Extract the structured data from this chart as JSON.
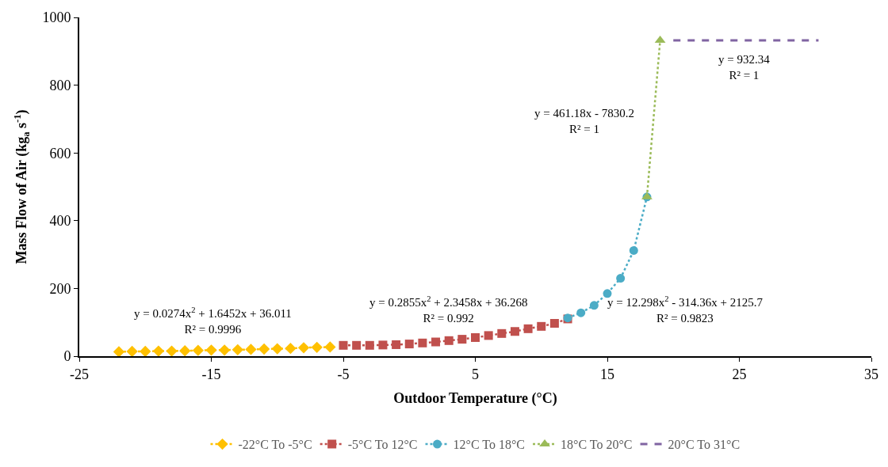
{
  "chart_data": {
    "type": "line",
    "xlabel": "Outdoor Temperature (°C)",
    "ylabel": "Mass Flow of Air (kg$_{a}$ s$^{-1}$)",
    "xlim": [
      -25,
      35
    ],
    "xticks": [
      -25,
      -15,
      -5,
      5,
      15,
      25,
      35
    ],
    "ylim": [
      0,
      1000
    ],
    "yticks": [
      0,
      200,
      400,
      600,
      800,
      1000
    ],
    "legend": "bottom",
    "series": [
      {
        "name": "-22°C To -5°C",
        "color": "#ffc000",
        "marker": "diamond",
        "line_style": "dotted",
        "x": [
          -22,
          -21,
          -20,
          -19,
          -18,
          -17,
          -16,
          -15,
          -14,
          -13,
          -12,
          -11,
          -10,
          -9,
          -8,
          -7,
          -6
        ],
        "values": [
          13,
          14,
          14,
          15,
          15,
          16,
          17,
          18,
          18,
          19,
          20,
          21,
          22,
          23,
          25,
          26,
          27
        ]
      },
      {
        "name": "-5°C To 12°C",
        "color": "#c0504d",
        "marker": "square",
        "line_style": "dotted",
        "x": [
          -5,
          -4,
          -3,
          -2,
          -1,
          0,
          1,
          2,
          3,
          4,
          5,
          6,
          7,
          8,
          9,
          10,
          11,
          12
        ],
        "values": [
          32,
          32,
          32,
          33,
          34,
          36,
          39,
          42,
          46,
          50,
          55,
          61,
          67,
          73,
          81,
          88,
          97,
          110
        ]
      },
      {
        "name": "12°C To 18°C",
        "color": "#4bacc6",
        "marker": "circle",
        "line_style": "dotted",
        "x": [
          12,
          13,
          14,
          15,
          16,
          17,
          18
        ],
        "values": [
          113,
          128,
          150,
          185,
          230,
          312,
          470
        ]
      },
      {
        "name": "18°C To 20°C",
        "color": "#9bbb59",
        "marker": "triangle",
        "line_style": "dotted",
        "x": [
          18,
          19
        ],
        "values": [
          470,
          932
        ]
      },
      {
        "name": "20°C To 31°C",
        "color": "#8064a2",
        "marker": "none",
        "line_style": "dashed",
        "x": [
          20,
          31
        ],
        "values": [
          932,
          932
        ]
      }
    ],
    "annotations": [
      "y = 0.0274x$^{2}$ + 1.6452x + 36.011\nR² = 0.9996",
      "y = 0.2855x$^{2}$ + 2.3458x + 36.268\nR² = 0.992",
      "y = 12.298x$^{2}$ - 314.36x + 2125.7\nR² = 0.9823",
      "y = 461.18x - 7830.2\nR² = 1",
      "y = 932.34\nR² = 1"
    ]
  }
}
